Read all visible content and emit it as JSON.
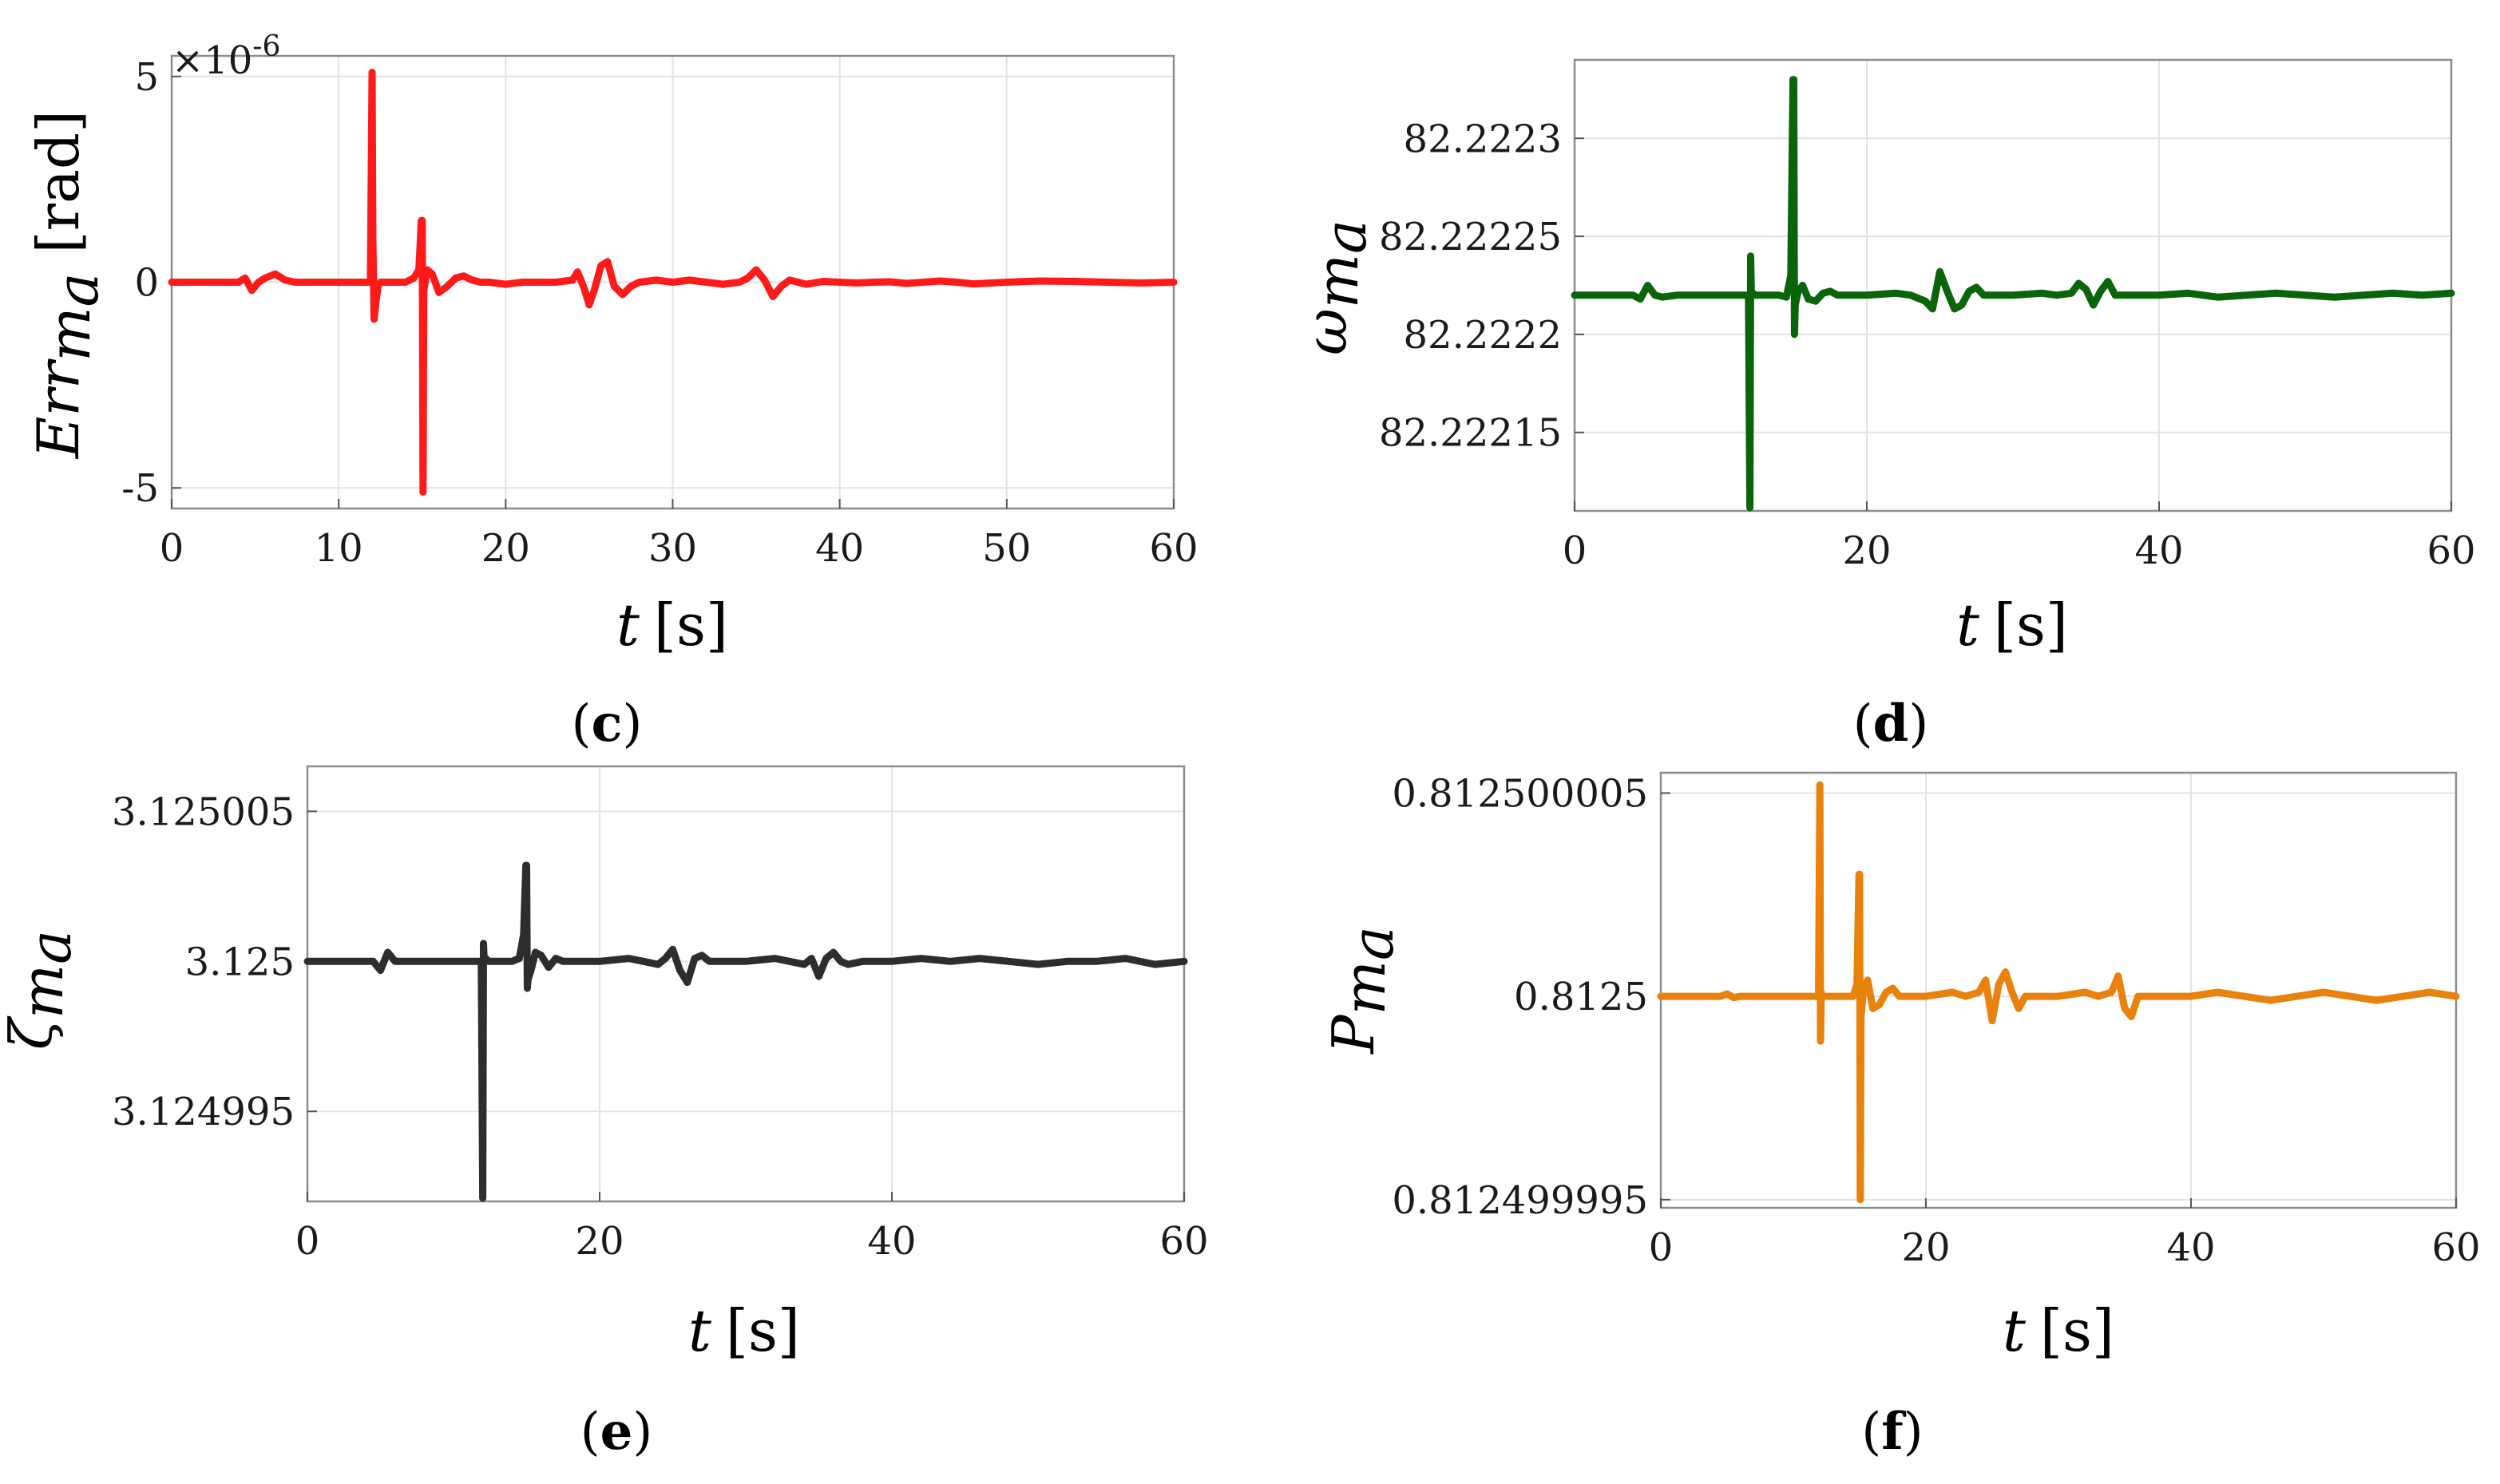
{
  "chart_data": [
    {
      "panel": "(c)",
      "panel_letter": "c",
      "type": "line",
      "title": "",
      "xlabel": "t",
      "xlabel_unit": "[s]",
      "ylabel": "Err",
      "ylabel_sub": "m",
      "ylabel_subsub": "a",
      "ylabel_unit": "[rad]",
      "exponent_label": "×10",
      "exponent_power": "-6",
      "color": "#ff1a1a",
      "xlim": [
        0,
        60
      ],
      "ylim": [
        -5.5,
        5.5
      ],
      "xticks": [
        0,
        10,
        20,
        30,
        40,
        50,
        60
      ],
      "xtick_labels": [
        "0",
        "10",
        "20",
        "30",
        "40",
        "50",
        "60"
      ],
      "yticks": [
        -5,
        0,
        5
      ],
      "ytick_labels": [
        "-5",
        "0",
        "5"
      ],
      "grid": true,
      "series": [
        {
          "name": "Err_ma",
          "x": [
            0,
            4.0,
            4.4,
            4.8,
            5.2,
            5.6,
            6.2,
            6.8,
            7.4,
            8.0,
            9.0,
            10.0,
            11.0,
            11.8,
            11.9,
            12.0,
            12.05,
            12.12,
            12.2,
            12.35,
            12.5,
            13.0,
            13.5,
            14.0,
            14.5,
            14.8,
            14.95,
            15.0,
            15.05,
            15.1,
            15.3,
            15.6,
            16.0,
            16.5,
            17.0,
            17.5,
            18.0,
            18.5,
            19.0,
            20.0,
            21.0,
            22.0,
            23.0,
            24.0,
            24.3,
            24.7,
            25.0,
            25.3,
            25.7,
            26.1,
            26.5,
            27.0,
            27.5,
            28.0,
            29.0,
            30.0,
            31.0,
            32.0,
            33.0,
            34.0,
            34.5,
            35.0,
            35.5,
            36.0,
            36.5,
            37.0,
            37.5,
            38.0,
            39.0,
            40.0,
            41.0,
            42.0,
            43.0,
            44.0,
            45.0,
            46.0,
            47.0,
            48.0,
            50.0,
            52.0,
            54.0,
            56.0,
            58.0,
            60.0
          ],
          "values": [
            0,
            0,
            0.1,
            -0.2,
            0,
            0.1,
            0.2,
            0.05,
            0,
            0,
            0,
            0,
            0,
            0,
            0.05,
            5.1,
            1.0,
            -0.9,
            -0.6,
            -0.1,
            0,
            0,
            0,
            0,
            0.1,
            0.3,
            1.5,
            1.5,
            -5.1,
            -0.2,
            0.3,
            0.2,
            -0.25,
            -0.1,
            0.1,
            0.15,
            0.05,
            0,
            0,
            -0.05,
            0,
            0,
            0,
            0.05,
            0.25,
            -0.15,
            -0.55,
            -0.2,
            0.4,
            0.5,
            -0.1,
            -0.3,
            -0.1,
            0,
            0.05,
            0,
            0.05,
            0,
            -0.05,
            0,
            0.1,
            0.3,
            0.05,
            -0.35,
            -0.1,
            0.05,
            0,
            -0.05,
            0.02,
            0,
            -0.02,
            0,
            0.01,
            -0.03,
            0,
            0.03,
            0,
            -0.04,
            0,
            0.03,
            0.02,
            0,
            -0.02,
            0
          ]
        }
      ]
    },
    {
      "panel": "(d)",
      "panel_letter": "d",
      "type": "line",
      "title": "",
      "xlabel": "t",
      "xlabel_unit": "[s]",
      "ylabel": "ω",
      "ylabel_sub": "m",
      "ylabel_subsub": "a",
      "color": "#0a640a",
      "xlim": [
        0,
        60
      ],
      "ylim": [
        82.22211,
        82.22234
      ],
      "xticks": [
        0,
        20,
        40,
        60
      ],
      "xtick_labels": [
        "0",
        "20",
        "40",
        "60"
      ],
      "yticks": [
        82.22215,
        82.2222,
        82.22225,
        82.2223
      ],
      "ytick_labels": [
        "82.22215",
        "82.2222",
        "82.22225",
        "82.2223"
      ],
      "grid": true,
      "series": [
        {
          "name": "omega_ma",
          "x": [
            0,
            4.0,
            4.5,
            5.0,
            5.5,
            6.0,
            7.0,
            8.0,
            10.0,
            11.8,
            11.9,
            12.0,
            12.05,
            12.1,
            12.2,
            12.4,
            13.0,
            14.0,
            14.5,
            14.8,
            14.95,
            15.0,
            15.05,
            15.1,
            15.3,
            15.6,
            16.0,
            16.5,
            17.0,
            17.5,
            18.0,
            19.0,
            20.0,
            22.0,
            23.0,
            24.0,
            24.5,
            25.0,
            25.5,
            26.0,
            26.5,
            27.0,
            27.5,
            28.0,
            29.0,
            30.0,
            32.0,
            33.0,
            34.0,
            34.5,
            35.0,
            35.5,
            36.0,
            36.5,
            37.0,
            38.0,
            40.0,
            42.0,
            44.0,
            46.0,
            48.0,
            50.0,
            52.0,
            54.0,
            56.0,
            58.0,
            60.0
          ],
          "values": [
            82.22222,
            82.22222,
            82.222218,
            82.222225,
            82.22222,
            82.222219,
            82.22222,
            82.22222,
            82.22222,
            82.22222,
            82.22222,
            82.22211,
            82.22224,
            82.22222,
            82.222221,
            82.22222,
            82.22222,
            82.22222,
            82.222219,
            82.22223,
            82.22233,
            82.22233,
            82.2222,
            82.222215,
            82.222222,
            82.222225,
            82.222218,
            82.222217,
            82.222221,
            82.222222,
            82.22222,
            82.22222,
            82.22222,
            82.222221,
            82.22222,
            82.222217,
            82.222213,
            82.222232,
            82.222222,
            82.222213,
            82.222215,
            82.222222,
            82.222224,
            82.22222,
            82.22222,
            82.22222,
            82.222221,
            82.22222,
            82.222221,
            82.222226,
            82.222223,
            82.222215,
            82.222222,
            82.222227,
            82.22222,
            82.22222,
            82.22222,
            82.222221,
            82.222219,
            82.22222,
            82.222221,
            82.22222,
            82.222219,
            82.22222,
            82.222221,
            82.22222,
            82.222221
          ]
        }
      ]
    },
    {
      "panel": "(e)",
      "panel_letter": "e",
      "type": "line",
      "title": "",
      "xlabel": "t",
      "xlabel_unit": "[s]",
      "ylabel": "ζ",
      "ylabel_sub": "m",
      "ylabel_subsub": "a",
      "color": "#2d2d2d",
      "xlim": [
        0,
        60
      ],
      "ylim": [
        3.124992,
        3.1250065
      ],
      "xticks": [
        0,
        20,
        40,
        60
      ],
      "xtick_labels": [
        "0",
        "20",
        "40",
        "60"
      ],
      "yticks": [
        3.124995,
        3.125,
        3.125005
      ],
      "ytick_labels": [
        "3.124995",
        "3.125",
        "3.125005"
      ],
      "grid": true,
      "series": [
        {
          "name": "zeta_ma",
          "x": [
            0,
            4.0,
            4.5,
            5.0,
            5.5,
            6.0,
            7.0,
            8.0,
            10.0,
            11.8,
            11.9,
            12.0,
            12.05,
            12.1,
            12.2,
            12.4,
            13.0,
            14.0,
            14.5,
            14.8,
            14.95,
            15.0,
            15.05,
            15.1,
            15.3,
            15.6,
            16.0,
            16.5,
            17.0,
            17.5,
            18.0,
            19.0,
            20.0,
            22.0,
            23.0,
            24.0,
            24.5,
            25.0,
            25.5,
            26.0,
            26.5,
            27.0,
            27.5,
            28.0,
            29.0,
            30.0,
            32.0,
            33.0,
            34.0,
            34.5,
            35.0,
            35.5,
            36.0,
            36.5,
            37.0,
            38.0,
            40.0,
            42.0,
            44.0,
            46.0,
            48.0,
            50.0,
            52.0,
            54.0,
            56.0,
            58.0,
            60.0
          ],
          "values": [
            3.125,
            3.125,
            3.125,
            3.1249997,
            3.1250003,
            3.125,
            3.125,
            3.125,
            3.125,
            3.125,
            3.125,
            3.1249921,
            3.1250006,
            3.125,
            3.1250001,
            3.125,
            3.125,
            3.125,
            3.1250001,
            3.1250009,
            3.1250032,
            3.1250032,
            3.1249991,
            3.1249994,
            3.1249997,
            3.1250003,
            3.1250002,
            3.1249998,
            3.1250001,
            3.125,
            3.125,
            3.125,
            3.125,
            3.1250001,
            3.125,
            3.1249999,
            3.1250001,
            3.1250004,
            3.1249997,
            3.1249993,
            3.1250001,
            3.1250002,
            3.125,
            3.125,
            3.125,
            3.125,
            3.1250001,
            3.125,
            3.1249999,
            3.1250001,
            3.1249995,
            3.1250001,
            3.1250003,
            3.125,
            3.1249999,
            3.125,
            3.125,
            3.1250001,
            3.125,
            3.1250001,
            3.125,
            3.1249999,
            3.125,
            3.125,
            3.1250001,
            3.1249999,
            3.125
          ]
        }
      ]
    },
    {
      "panel": "(f)",
      "panel_letter": "f",
      "type": "line",
      "title": "",
      "xlabel": "t",
      "xlabel_unit": "[s]",
      "ylabel": "P",
      "ylabel_sub": "m",
      "ylabel_subsub": "a",
      "color": "#e8820c",
      "xlim": [
        0,
        60
      ],
      "ylim": [
        0.8124999948,
        0.8125000055
      ],
      "xticks": [
        0,
        20,
        40,
        60
      ],
      "xtick_labels": [
        "0",
        "20",
        "40",
        "60"
      ],
      "yticks": [
        0.812499995,
        0.8125,
        0.812500005
      ],
      "ytick_labels": [
        "0.812499995",
        "0.8125",
        "0.812500005"
      ],
      "grid": true,
      "series": [
        {
          "name": "P_ma",
          "x": [
            0,
            4.0,
            4.5,
            5.0,
            5.5,
            6.0,
            7.0,
            8.0,
            10.0,
            11.8,
            11.9,
            12.0,
            12.05,
            12.1,
            12.2,
            12.4,
            13.0,
            14.0,
            14.5,
            14.8,
            14.95,
            15.0,
            15.05,
            15.1,
            15.3,
            15.6,
            16.0,
            16.5,
            17.0,
            17.5,
            18.0,
            19.0,
            20.0,
            22.0,
            23.0,
            24.0,
            24.5,
            25.0,
            25.5,
            26.0,
            26.5,
            27.0,
            27.5,
            28.0,
            29.0,
            30.0,
            32.0,
            33.0,
            34.0,
            34.5,
            35.0,
            35.5,
            36.0,
            36.5,
            37.0,
            38.0,
            40.0,
            42.0,
            44.0,
            46.0,
            48.0,
            50.0,
            52.0,
            54.0,
            56.0,
            58.0,
            60.0
          ],
          "values": [
            0.8125,
            0.8125,
            0.8125,
            0.81250000006,
            0.81249999997,
            0.8125,
            0.8125,
            0.8125,
            0.8125,
            0.8125,
            0.8125,
            0.8125000052,
            0.8124999989,
            0.8125000001,
            0.8125,
            0.8125,
            0.8125,
            0.8125,
            0.8125,
            0.8125000003,
            0.812500003,
            0.812500003,
            0.812499995,
            0.8124999995,
            0.8125000002,
            0.8125000004,
            0.8124999997,
            0.8124999998,
            0.8125000001,
            0.8125000002,
            0.8125,
            0.8125,
            0.8125,
            0.8125000001,
            0.8125,
            0.8125000001,
            0.8125000004,
            0.8124999994,
            0.8125000003,
            0.8125000006,
            0.8125000001,
            0.8124999997,
            0.8125,
            0.8125,
            0.8125,
            0.8125,
            0.8125000001,
            0.8125,
            0.8125000001,
            0.8125000005,
            0.8124999997,
            0.8124999995,
            0.8125,
            0.8125,
            0.8125,
            0.8125,
            0.8125,
            0.8125000001,
            0.8125,
            0.8124999999,
            0.8125,
            0.8125000001,
            0.8125,
            0.8124999999,
            0.8125,
            0.8125000001,
            0.8125
          ]
        }
      ]
    }
  ]
}
